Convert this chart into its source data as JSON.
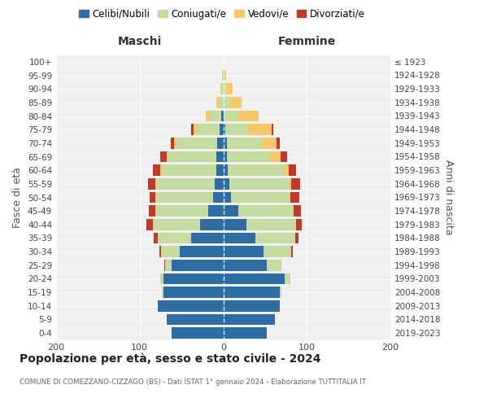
{
  "age_groups": [
    "0-4",
    "5-9",
    "10-14",
    "15-19",
    "20-24",
    "25-29",
    "30-34",
    "35-39",
    "40-44",
    "45-49",
    "50-54",
    "55-59",
    "60-64",
    "65-69",
    "70-74",
    "75-79",
    "80-84",
    "85-89",
    "90-94",
    "95-99",
    "100+"
  ],
  "birth_years": [
    "2019-2023",
    "2014-2018",
    "2009-2013",
    "2004-2008",
    "1999-2003",
    "1994-1998",
    "1989-1993",
    "1984-1988",
    "1979-1983",
    "1974-1978",
    "1969-1973",
    "1964-1968",
    "1959-1963",
    "1954-1958",
    "1949-1953",
    "1944-1948",
    "1939-1943",
    "1934-1938",
    "1929-1933",
    "1924-1928",
    "≤ 1923"
  ],
  "maschi": {
    "celibi": [
      62,
      68,
      78,
      72,
      72,
      62,
      52,
      38,
      28,
      18,
      12,
      10,
      8,
      8,
      7,
      4,
      2,
      0,
      0,
      0,
      0
    ],
    "coniugati": [
      0,
      0,
      0,
      1,
      3,
      8,
      22,
      40,
      55,
      62,
      68,
      70,
      65,
      58,
      48,
      28,
      14,
      5,
      2,
      1,
      0
    ],
    "vedovi": [
      0,
      0,
      0,
      0,
      0,
      0,
      0,
      0,
      1,
      1,
      1,
      1,
      2,
      2,
      4,
      4,
      5,
      3,
      1,
      0,
      0
    ],
    "divorziati": [
      0,
      0,
      0,
      0,
      0,
      1,
      2,
      5,
      8,
      8,
      7,
      9,
      9,
      7,
      4,
      2,
      0,
      0,
      0,
      0,
      0
    ]
  },
  "femmine": {
    "nubili": [
      52,
      62,
      68,
      68,
      73,
      52,
      48,
      38,
      28,
      18,
      9,
      7,
      5,
      4,
      4,
      2,
      0,
      0,
      0,
      0,
      0
    ],
    "coniugate": [
      0,
      0,
      0,
      2,
      7,
      18,
      33,
      48,
      58,
      65,
      70,
      72,
      68,
      52,
      42,
      28,
      18,
      8,
      3,
      1,
      0
    ],
    "vedove": [
      0,
      0,
      0,
      0,
      0,
      0,
      0,
      0,
      1,
      1,
      1,
      2,
      5,
      13,
      18,
      28,
      24,
      14,
      8,
      2,
      0
    ],
    "divorziate": [
      0,
      0,
      0,
      0,
      0,
      0,
      2,
      4,
      7,
      9,
      11,
      11,
      9,
      7,
      4,
      2,
      0,
      0,
      0,
      0,
      0
    ]
  },
  "colors": {
    "celibi": "#2E6DA4",
    "coniugati": "#C5DCA0",
    "vedovi": "#F5C96B",
    "divorziati": "#C0392B"
  },
  "title": "Popolazione per età, sesso e stato civile - 2024",
  "subtitle": "COMUNE DI COMEZZANO-CIZZAGO (BS) - Dati ISTAT 1° gennaio 2024 - Elaborazione TUTTITALIA.IT",
  "xlabel_left": "Maschi",
  "xlabel_right": "Femmine",
  "ylabel_left": "Fasce di età",
  "ylabel_right": "Anni di nascita",
  "xlim": 200,
  "legend_labels": [
    "Celibi/Nubili",
    "Coniugati/e",
    "Vedovi/e",
    "Divorziati/e"
  ]
}
